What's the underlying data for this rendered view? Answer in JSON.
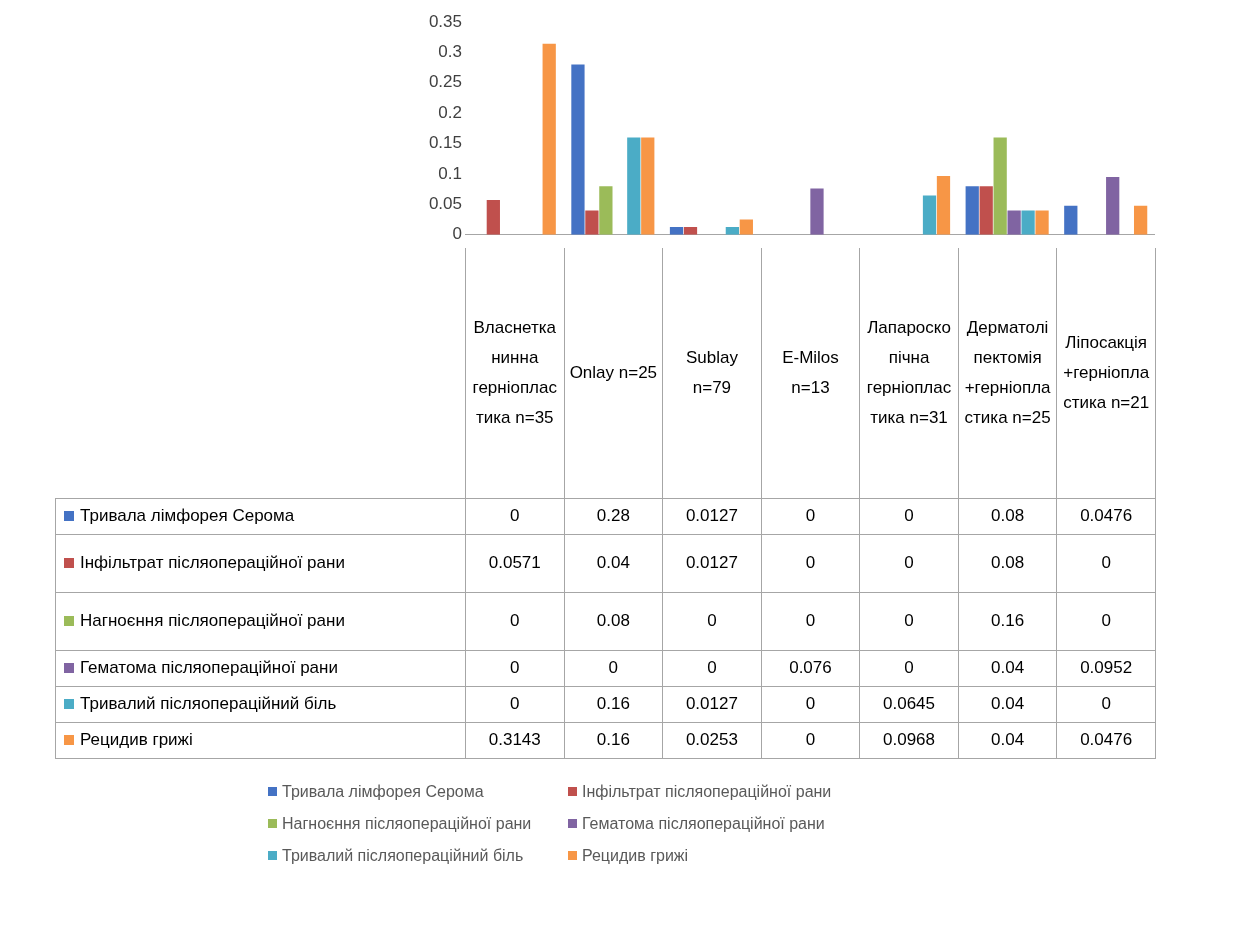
{
  "chart_data": {
    "type": "bar",
    "categories": [
      "Власнетканинна герніопластика n=35",
      "Onlay n=25",
      "Sublay n=79",
      "E-Milos n=13",
      "Лапароскопічна герніопластика n=31",
      "Дерматоліпектомія +герніопластика n=25",
      "Ліпосакція +герніопластика n=21"
    ],
    "series": [
      {
        "name": "Тривала лімфорея Серома",
        "color": "#4472c4",
        "values": [
          0,
          0.28,
          0.0127,
          0,
          0,
          0.08,
          0.0476
        ]
      },
      {
        "name": "Інфільтрат післяопераційної рани",
        "color": "#c0504d",
        "values": [
          0.0571,
          0.04,
          0.0127,
          0,
          0,
          0.08,
          0
        ]
      },
      {
        "name": "Нагноєння післяопераційної рани",
        "color": "#9bbb59",
        "values": [
          0,
          0.08,
          0,
          0,
          0,
          0.16,
          0
        ]
      },
      {
        "name": "Гематома післяопераційної рани",
        "color": "#8064a2",
        "values": [
          0,
          0,
          0,
          0.076,
          0,
          0.04,
          0.0952
        ]
      },
      {
        "name": "Тривалий післяопераційний біль",
        "color": "#4bacc6",
        "values": [
          0,
          0.16,
          0.0127,
          0,
          0.0645,
          0.04,
          0
        ]
      },
      {
        "name": "Рецидив грижі",
        "color": "#f79646",
        "values": [
          0.3143,
          0.16,
          0.0253,
          0,
          0.0968,
          0.04,
          0.0476
        ]
      }
    ],
    "ylim": [
      0,
      0.35
    ],
    "yticks": [
      0,
      0.05,
      0.1,
      0.15,
      0.2,
      0.25,
      0.3,
      0.35
    ],
    "grid": false,
    "legend": "bottom",
    "data_labels": true
  }
}
